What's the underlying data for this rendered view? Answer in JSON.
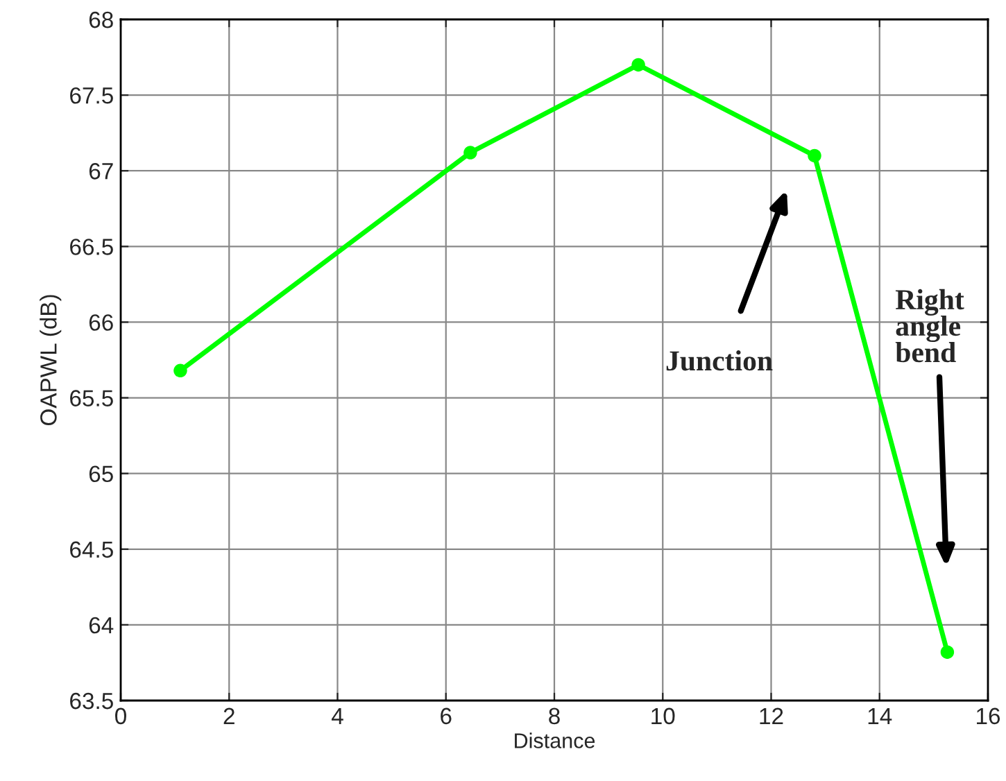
{
  "chart_data": {
    "type": "line",
    "xlabel": "Distance",
    "ylabel": "OAPWL (dB)",
    "x": [
      1.1,
      6.45,
      9.55,
      12.8,
      15.25
    ],
    "series": [
      {
        "color": "#00ff00",
        "values": [
          65.68,
          67.12,
          67.7,
          67.1,
          63.82
        ]
      }
    ],
    "xlim": [
      0,
      16
    ],
    "xticks": [
      0,
      2,
      4,
      6,
      8,
      10,
      12,
      14,
      16
    ],
    "ylim": [
      63.5,
      68
    ],
    "yticks": [
      63.5,
      64,
      64.5,
      65,
      65.5,
      66,
      66.5,
      67,
      67.5,
      68
    ],
    "grid": true,
    "marker": "circle",
    "line_style": "solid",
    "annotations": [
      "Junction",
      "Right\nangle\nbend"
    ]
  }
}
